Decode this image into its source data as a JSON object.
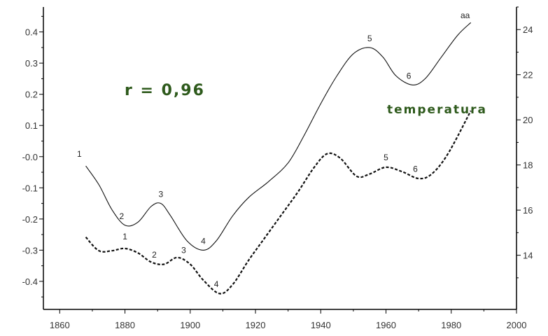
{
  "chart_data": {
    "type": "line",
    "x_ticks": [
      "1860",
      "1880",
      "1900",
      "1920",
      "1940",
      "1960",
      "1980",
      "2000"
    ],
    "left_y_ticks": [
      "0.4",
      "0.3",
      "0.2",
      "0.1",
      "-0.0",
      "-0.1",
      "-0.2",
      "-0.3",
      "-0.4"
    ],
    "right_y_ticks": [
      "24",
      "22",
      "20",
      "18",
      "16",
      "14"
    ],
    "annotation": "r = 0,96",
    "xlim": [
      1855,
      2000
    ],
    "ylim_left": [
      -0.49,
      0.48
    ],
    "ylim_right": [
      11.6,
      25
    ],
    "series": [
      {
        "name": "aa",
        "axis": "left",
        "style": "solid",
        "points": [
          [
            1868,
            -0.03
          ],
          [
            1872,
            -0.09
          ],
          [
            1876,
            -0.17
          ],
          [
            1880,
            -0.22
          ],
          [
            1884,
            -0.21
          ],
          [
            1888,
            -0.16
          ],
          [
            1891,
            -0.15
          ],
          [
            1894,
            -0.19
          ],
          [
            1899,
            -0.27
          ],
          [
            1904,
            -0.3
          ],
          [
            1908,
            -0.27
          ],
          [
            1913,
            -0.19
          ],
          [
            1918,
            -0.13
          ],
          [
            1924,
            -0.08
          ],
          [
            1930,
            -0.02
          ],
          [
            1935,
            0.07
          ],
          [
            1940,
            0.17
          ],
          [
            1945,
            0.26
          ],
          [
            1950,
            0.33
          ],
          [
            1955,
            0.35
          ],
          [
            1959,
            0.32
          ],
          [
            1963,
            0.26
          ],
          [
            1968,
            0.23
          ],
          [
            1972,
            0.25
          ],
          [
            1977,
            0.32
          ],
          [
            1982,
            0.39
          ],
          [
            1986,
            0.43
          ]
        ],
        "point_labels": [
          {
            "text": "1",
            "x": 1866,
            "y": 0.0
          },
          {
            "text": "2",
            "x": 1879,
            "y": -0.2
          },
          {
            "text": "3",
            "x": 1891,
            "y": -0.13
          },
          {
            "text": "4",
            "x": 1904,
            "y": -0.28
          },
          {
            "text": "5",
            "x": 1955,
            "y": 0.37
          },
          {
            "text": "6",
            "x": 1967,
            "y": 0.25
          }
        ]
      },
      {
        "name": "temperatura",
        "axis": "right",
        "style": "dashed",
        "points": [
          [
            1868,
            14.8
          ],
          [
            1872,
            14.2
          ],
          [
            1876,
            14.2
          ],
          [
            1880,
            14.3
          ],
          [
            1884,
            14.1
          ],
          [
            1888,
            13.7
          ],
          [
            1892,
            13.6
          ],
          [
            1896,
            13.9
          ],
          [
            1900,
            13.6
          ],
          [
            1904,
            12.9
          ],
          [
            1909,
            12.3
          ],
          [
            1913,
            12.7
          ],
          [
            1918,
            13.8
          ],
          [
            1923,
            14.8
          ],
          [
            1928,
            15.8
          ],
          [
            1933,
            16.8
          ],
          [
            1938,
            17.9
          ],
          [
            1942,
            18.5
          ],
          [
            1946,
            18.3
          ],
          [
            1951,
            17.5
          ],
          [
            1955,
            17.6
          ],
          [
            1960,
            17.9
          ],
          [
            1965,
            17.7
          ],
          [
            1970,
            17.4
          ],
          [
            1974,
            17.6
          ],
          [
            1979,
            18.5
          ],
          [
            1986,
            20.4
          ]
        ],
        "point_labels": [
          {
            "text": "1",
            "x": 1880,
            "y": 14.7
          },
          {
            "text": "2",
            "x": 1889,
            "y": 13.9
          },
          {
            "text": "3",
            "x": 1898,
            "y": 14.1
          },
          {
            "text": "4",
            "x": 1908,
            "y": 12.6
          },
          {
            "text": "5",
            "x": 1960,
            "y": 18.2
          },
          {
            "text": "6",
            "x": 1969,
            "y": 17.7
          }
        ]
      }
    ]
  }
}
